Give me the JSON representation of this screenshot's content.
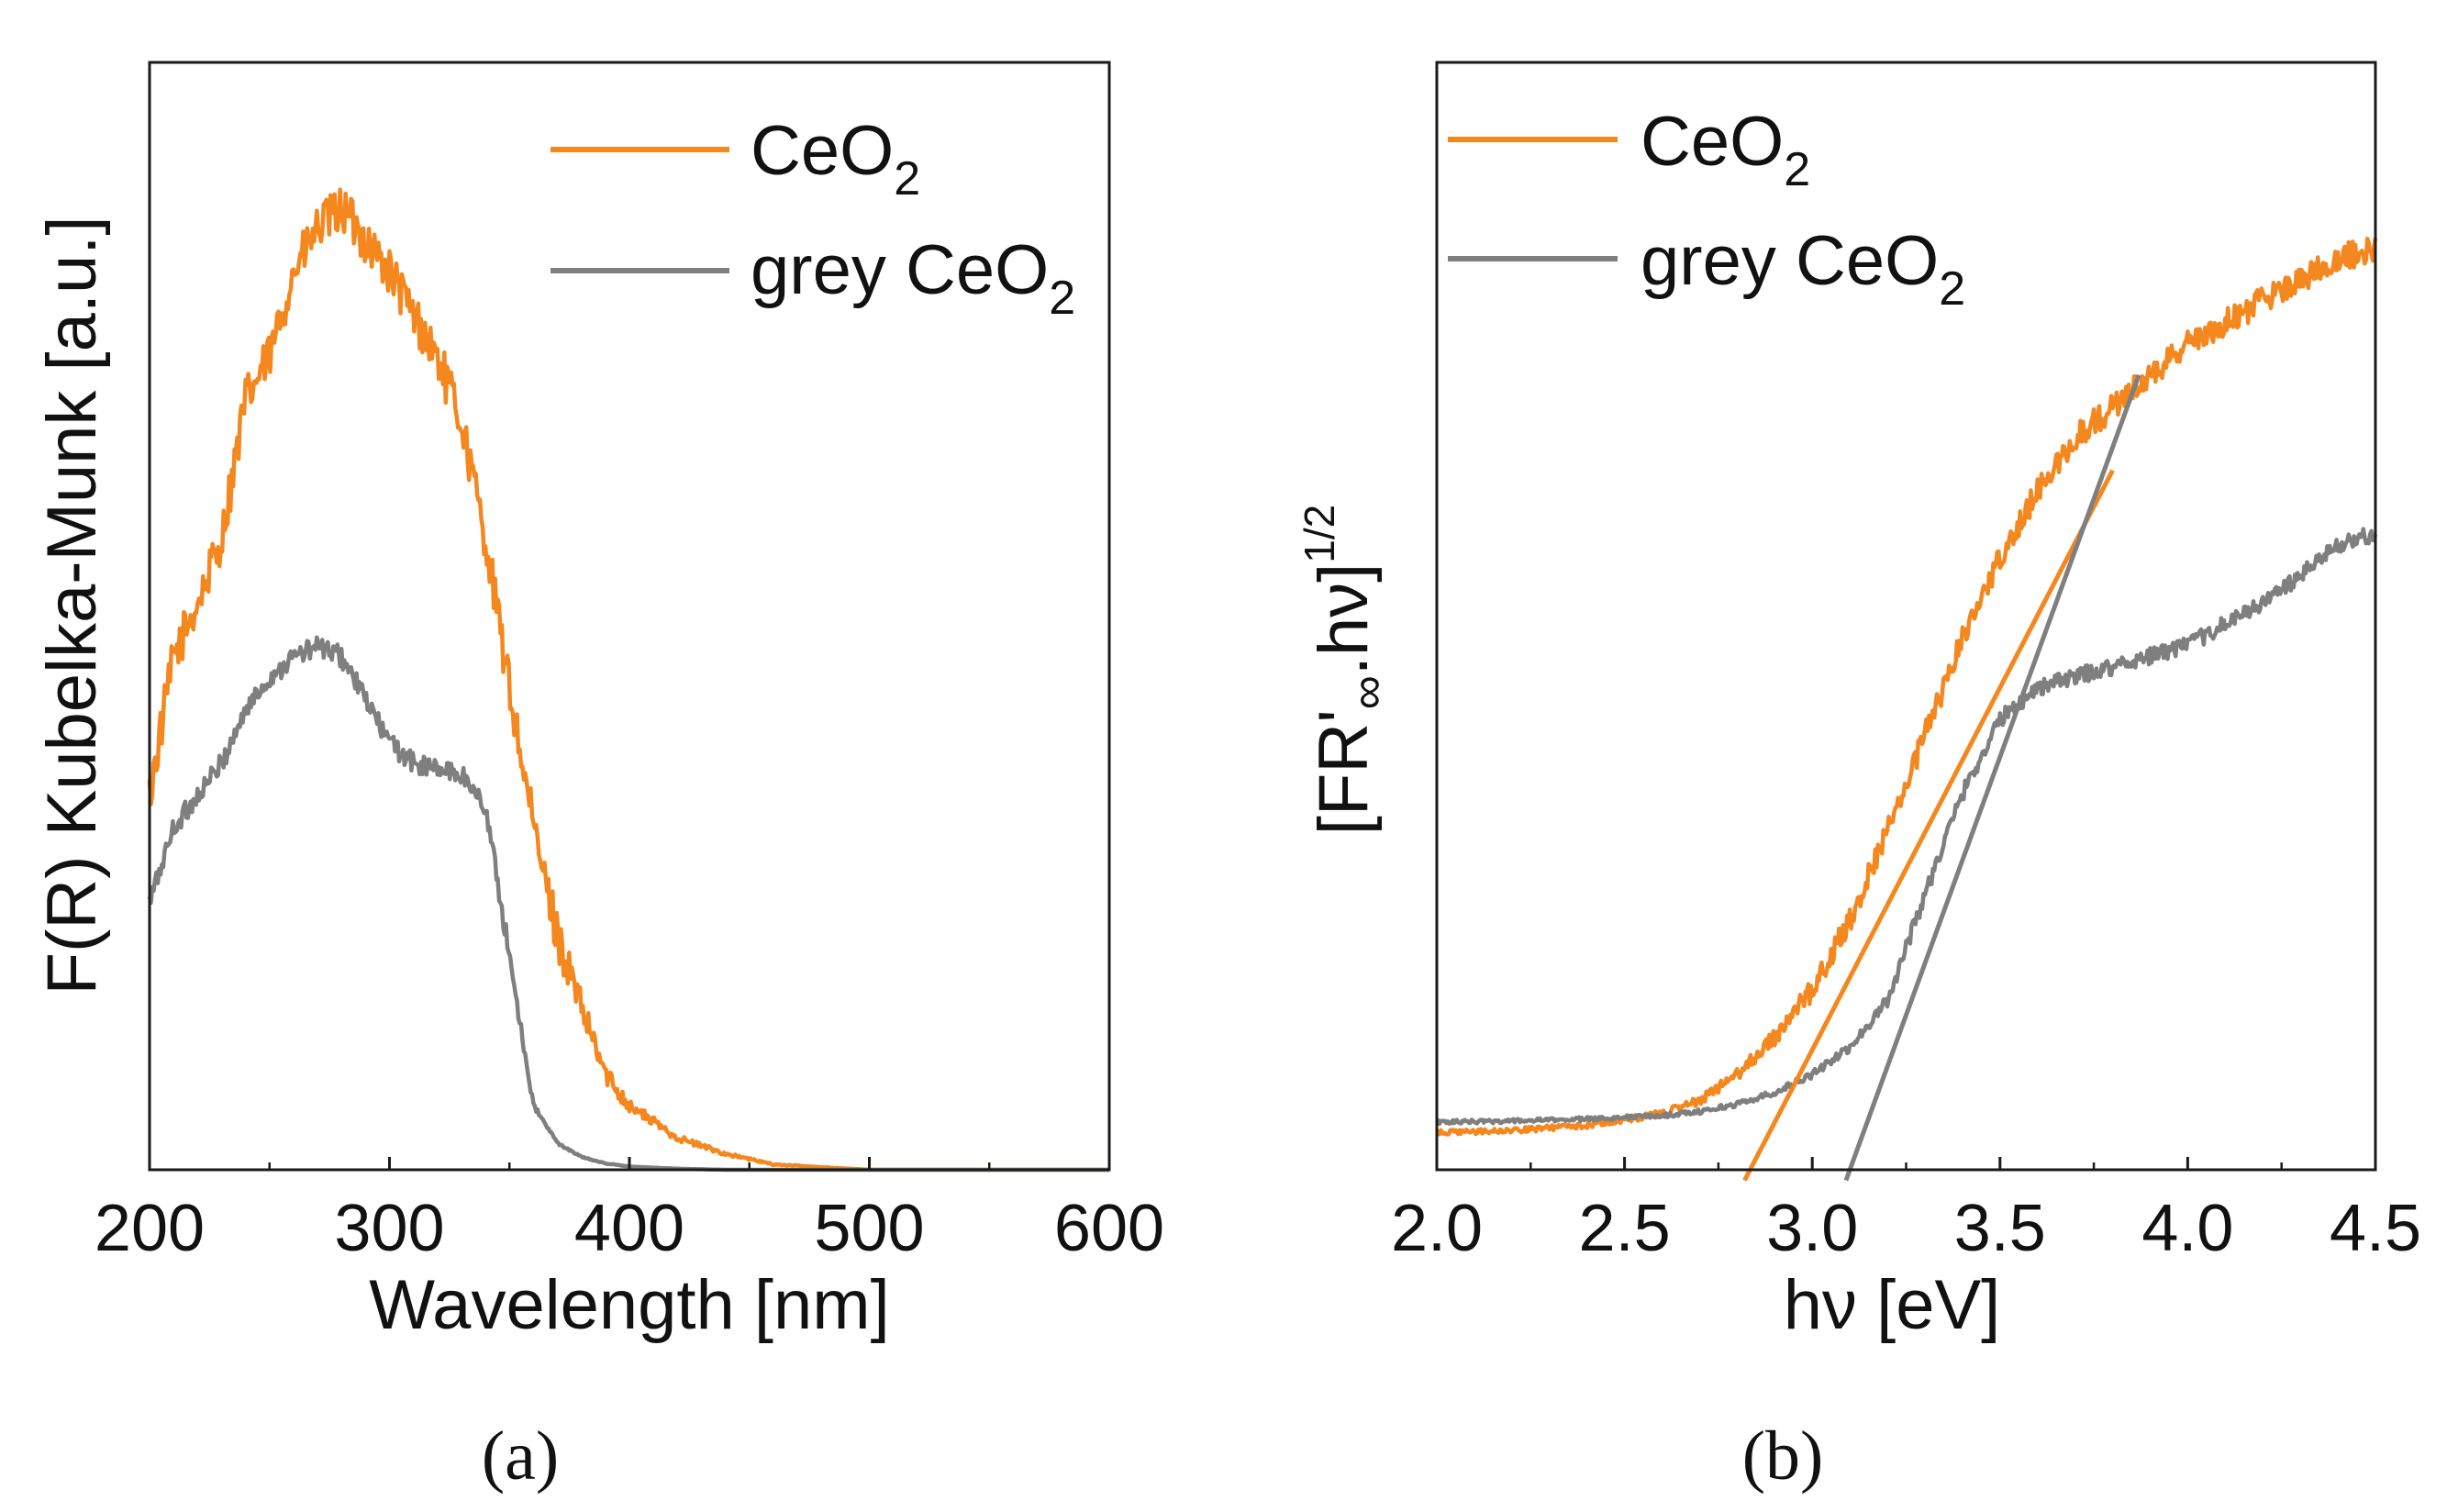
{
  "chart_data": [
    {
      "type": "line",
      "panel_label": "(a)",
      "xlabel": "Wavelength [nm]",
      "ylabel": "F(R) Kubelka-Munk [a.u.]",
      "xlim": [
        200,
        600
      ],
      "ylim": [
        0,
        100
      ],
      "xticks": [
        200,
        300,
        400,
        500,
        600
      ],
      "x": [
        200,
        210,
        220,
        230,
        240,
        250,
        260,
        270,
        280,
        290,
        300,
        310,
        320,
        330,
        340,
        350,
        360,
        370,
        380,
        390,
        400,
        420,
        440,
        460,
        500,
        550,
        600
      ],
      "series": [
        {
          "name": "CeO2",
          "label_base": "CeO",
          "label_sub": "2",
          "color": "#f5871f",
          "noise": 2.2,
          "values": [
            35,
            48,
            53,
            59,
            72,
            76,
            84,
            88,
            90,
            87,
            84,
            80,
            76,
            70,
            59,
            45,
            32,
            22,
            15,
            9,
            6,
            3,
            1.5,
            0.5,
            0,
            0,
            0
          ]
        },
        {
          "name": "grey CeO2",
          "label_base": "grey CeO",
          "label_sub": "2",
          "color": "#7f7f7f",
          "noise": 1.0,
          "values": [
            25,
            32,
            35,
            38,
            43,
            46,
            48,
            49,
            48,
            44,
            40,
            38,
            37.5,
            37,
            34,
            20,
            6,
            2.5,
            1.2,
            0.6,
            0.3,
            0.1,
            0,
            0,
            0,
            0,
            0
          ]
        }
      ],
      "legend": "top-right"
    },
    {
      "type": "line",
      "panel_label": "(b)",
      "xlabel": "hν [eV]",
      "ylabel_base": "[FR'",
      "ylabel_sub": "∞",
      "ylabel_mid": ".hν]",
      "ylabel_sup": "1/2",
      "xlim": [
        2.0,
        4.5
      ],
      "ylim": [
        0,
        100
      ],
      "xticks": [
        "2.0",
        "2.5",
        "3.0",
        "3.5",
        "4.0",
        "4.5"
      ],
      "x": [
        2.0,
        2.2,
        2.4,
        2.6,
        2.7,
        2.8,
        2.9,
        3.0,
        3.1,
        3.2,
        3.3,
        3.4,
        3.5,
        3.6,
        3.7,
        3.8,
        3.9,
        4.0,
        4.1,
        4.2,
        4.3,
        4.4,
        4.5
      ],
      "series": [
        {
          "name": "CeO2",
          "label_base": "CeO",
          "label_sub": "2",
          "color": "#f5871f",
          "noise": 1.3,
          "values": [
            3.5,
            3.7,
            4.2,
            5.3,
            6.5,
            9,
            12.5,
            17,
            23.5,
            32,
            41,
            50,
            58,
            64,
            69,
            72,
            75,
            78,
            80,
            82,
            84,
            86,
            87
          ]
        },
        {
          "name": "grey CeO2",
          "label_base": "grey CeO",
          "label_sub": "2",
          "color": "#7f7f7f",
          "noise": 0.8,
          "values": [
            4.5,
            4.6,
            4.8,
            5.1,
            5.5,
            6.2,
            7.3,
            9,
            11.5,
            16,
            26,
            35.5,
            42.5,
            45.5,
            46.5,
            47.5,
            48.5,
            49.5,
            51.5,
            53.5,
            56,
            59,
            60
          ]
        }
      ],
      "tangent_lines": [
        {
          "color": "#f5871f",
          "x0": 2.82,
          "y0": -1,
          "x1": 3.8,
          "y1": 66
        },
        {
          "color": "#7f7f7f",
          "x0": 3.09,
          "y0": -1,
          "x1": 3.87,
          "y1": 75
        }
      ],
      "legend": "top-left"
    }
  ]
}
